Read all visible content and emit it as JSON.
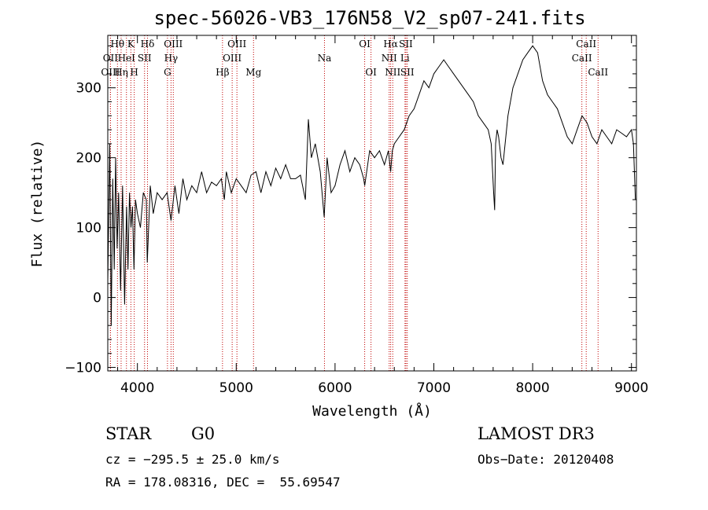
{
  "chart_data": {
    "type": "line",
    "title": "spec-56026-VB3_176N58_V2_sp07-241.fits",
    "xlabel": "Wavelength (Å)",
    "ylabel": "Flux (relative)",
    "xlim": [
      3700,
      9050
    ],
    "ylim": [
      -105,
      375
    ],
    "xticks": [
      4000,
      5000,
      6000,
      7000,
      8000,
      9000
    ],
    "yticks": [
      -100,
      0,
      100,
      200,
      300
    ],
    "series": [
      {
        "name": "flux",
        "x": [
          3700,
          3720,
          3735,
          3750,
          3765,
          3780,
          3795,
          3810,
          3830,
          3850,
          3870,
          3890,
          3905,
          3920,
          3935,
          3950,
          3965,
          3980,
          4000,
          4030,
          4060,
          4090,
          4100,
          4130,
          4160,
          4200,
          4250,
          4300,
          4340,
          4380,
          4420,
          4460,
          4500,
          4550,
          4600,
          4650,
          4700,
          4750,
          4800,
          4850,
          4880,
          4900,
          4950,
          5000,
          5050,
          5100,
          5150,
          5200,
          5250,
          5300,
          5350,
          5400,
          5450,
          5500,
          5550,
          5600,
          5650,
          5700,
          5730,
          5760,
          5800,
          5850,
          5890,
          5920,
          5960,
          6000,
          6050,
          6100,
          6150,
          6200,
          6250,
          6290,
          6300,
          6350,
          6400,
          6450,
          6500,
          6540,
          6563,
          6580,
          6600,
          6650,
          6700,
          6750,
          6800,
          6850,
          6900,
          6950,
          7000,
          7050,
          7100,
          7150,
          7200,
          7250,
          7300,
          7350,
          7400,
          7450,
          7500,
          7550,
          7580,
          7605,
          7615,
          7625,
          7640,
          7655,
          7680,
          7700,
          7750,
          7800,
          7850,
          7900,
          7950,
          8000,
          8050,
          8100,
          8150,
          8200,
          8250,
          8300,
          8350,
          8400,
          8450,
          8500,
          8550,
          8600,
          8650,
          8700,
          8750,
          8800,
          8850,
          8900,
          8950,
          9000,
          9020,
          9040
        ],
        "y": [
          20,
          220,
          -40,
          170,
          40,
          200,
          70,
          150,
          10,
          160,
          -10,
          130,
          40,
          150,
          100,
          130,
          40,
          140,
          120,
          100,
          150,
          140,
          50,
          160,
          120,
          150,
          140,
          150,
          110,
          160,
          120,
          170,
          140,
          160,
          150,
          180,
          150,
          165,
          160,
          170,
          140,
          180,
          150,
          170,
          160,
          150,
          175,
          180,
          150,
          180,
          160,
          185,
          170,
          190,
          170,
          170,
          175,
          140,
          255,
          200,
          220,
          180,
          115,
          200,
          150,
          160,
          190,
          210,
          180,
          200,
          190,
          170,
          160,
          210,
          200,
          210,
          190,
          210,
          180,
          210,
          220,
          230,
          240,
          260,
          270,
          290,
          310,
          300,
          320,
          330,
          340,
          330,
          320,
          310,
          300,
          290,
          280,
          260,
          250,
          240,
          220,
          150,
          125,
          220,
          240,
          230,
          200,
          190,
          260,
          300,
          320,
          340,
          350,
          360,
          350,
          310,
          290,
          280,
          270,
          250,
          230,
          220,
          240,
          260,
          250,
          230,
          220,
          240,
          230,
          220,
          240,
          235,
          230,
          240,
          220,
          140
        ]
      }
    ],
    "lines": [
      {
        "label": "Hθ",
        "x": 3798,
        "row": 1
      },
      {
        "label": "OII",
        "x": 3727,
        "row": 2
      },
      {
        "label": "OIII",
        "x": 3727,
        "row": 3
      },
      {
        "label": "HeI",
        "x": 3889,
        "row": 2
      },
      {
        "label": "Hη",
        "x": 3835,
        "row": 3
      },
      {
        "label": "K",
        "x": 3934,
        "row": 1
      },
      {
        "label": "H",
        "x": 3968,
        "row": 3
      },
      {
        "label": "SII",
        "x": 4072,
        "row": 2
      },
      {
        "label": "Hδ",
        "x": 4102,
        "row": 1
      },
      {
        "label": "OIII",
        "x": 4363,
        "row": 1
      },
      {
        "label": "Hγ",
        "x": 4340,
        "row": 2
      },
      {
        "label": "G",
        "x": 4304,
        "row": 3
      },
      {
        "label": "Hβ",
        "x": 4861,
        "row": 3
      },
      {
        "label": "OIII",
        "x": 4959,
        "row": 2
      },
      {
        "label": "OIII",
        "x": 5007,
        "row": 1
      },
      {
        "label": "Mg",
        "x": 5175,
        "row": 3
      },
      {
        "label": "Na",
        "x": 5893,
        "row": 2
      },
      {
        "label": "OI",
        "x": 6300,
        "row": 1
      },
      {
        "label": "OI",
        "x": 6364,
        "row": 3
      },
      {
        "label": "Hα",
        "x": 6563,
        "row": 1
      },
      {
        "label": "NII",
        "x": 6548,
        "row": 2
      },
      {
        "label": "NII",
        "x": 6584,
        "row": 3
      },
      {
        "label": "SII",
        "x": 6717,
        "row": 1
      },
      {
        "label": "Li",
        "x": 6708,
        "row": 2
      },
      {
        "label": "SII",
        "x": 6731,
        "row": 3
      },
      {
        "label": "CaII",
        "x": 8542,
        "row": 1
      },
      {
        "label": "CaII",
        "x": 8498,
        "row": 2
      },
      {
        "label": "CaII",
        "x": 8662,
        "row": 3
      }
    ]
  },
  "info": {
    "object_class": "STAR",
    "subclass": "G0",
    "survey": "LAMOST DR3",
    "cz": "cz = −295.5 ± 25.0 km/s",
    "obs_date": "Obs−Date: 20120408",
    "coords": "RA = 178.08316, DEC =  55.69547"
  }
}
